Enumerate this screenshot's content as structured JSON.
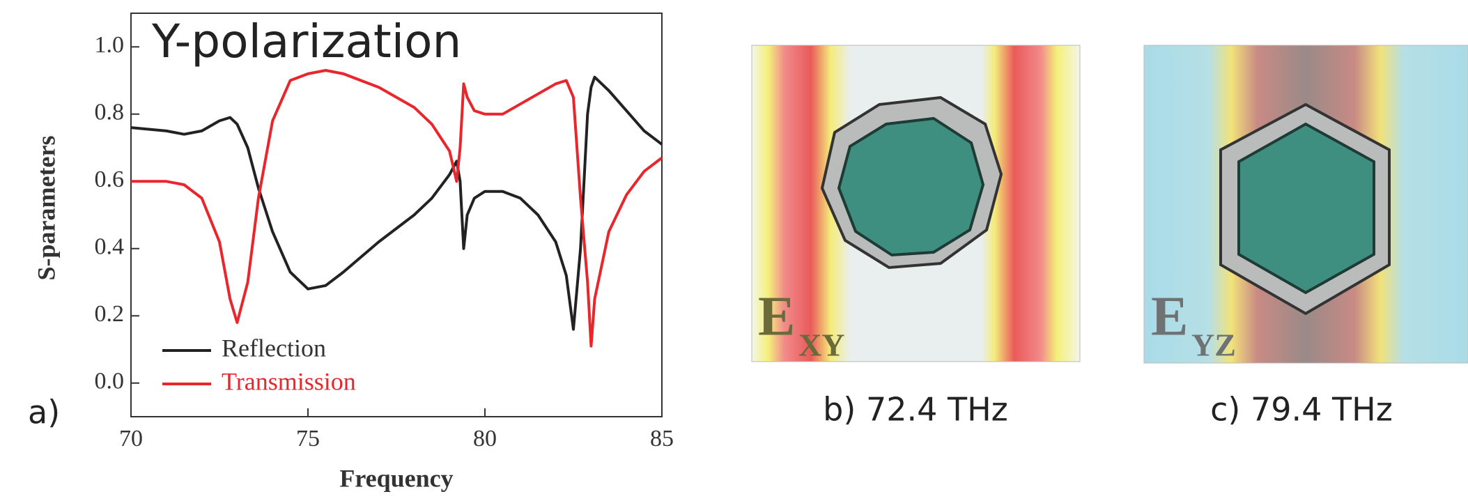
{
  "chart_data": {
    "type": "line",
    "title": "Y-polarization",
    "xlabel": "Frequency",
    "ylabel": "S-parameters",
    "x": [
      70,
      71,
      71.5,
      72,
      72.5,
      72.8,
      73,
      73.3,
      73.6,
      74,
      74.5,
      75,
      75.5,
      76,
      77,
      78,
      78.5,
      79,
      79.2,
      79.3,
      79.4,
      79.5,
      79.7,
      80,
      80.5,
      81,
      81.5,
      82,
      82.3,
      82.5,
      82.7,
      82.9,
      83,
      83.1,
      83.5,
      84,
      84.5,
      85
    ],
    "series": [
      {
        "name": "Reflection",
        "color": "#222222",
        "values": [
          0.76,
          0.75,
          0.74,
          0.75,
          0.78,
          0.79,
          0.77,
          0.7,
          0.58,
          0.45,
          0.33,
          0.28,
          0.29,
          0.33,
          0.42,
          0.5,
          0.55,
          0.62,
          0.66,
          0.6,
          0.4,
          0.5,
          0.55,
          0.57,
          0.57,
          0.55,
          0.5,
          0.42,
          0.32,
          0.16,
          0.4,
          0.8,
          0.88,
          0.91,
          0.87,
          0.81,
          0.75,
          0.71
        ]
      },
      {
        "name": "Transmission",
        "color": "#e8262b",
        "values": [
          0.6,
          0.6,
          0.59,
          0.55,
          0.42,
          0.25,
          0.18,
          0.3,
          0.55,
          0.78,
          0.9,
          0.92,
          0.93,
          0.92,
          0.88,
          0.82,
          0.77,
          0.69,
          0.6,
          0.7,
          0.89,
          0.85,
          0.81,
          0.8,
          0.8,
          0.83,
          0.86,
          0.89,
          0.9,
          0.85,
          0.55,
          0.3,
          0.11,
          0.25,
          0.45,
          0.56,
          0.63,
          0.67
        ]
      }
    ],
    "xlim": [
      70,
      85
    ],
    "xticks": [
      70,
      75,
      80,
      85
    ],
    "ylim": [
      -0.1,
      1.1
    ],
    "yticks": [
      {
        "value": 0,
        "label": "0.0"
      },
      0.2,
      0.4,
      0.6,
      0.8,
      {
        "value": 1,
        "label": "1.0"
      }
    ],
    "legend": "lower left"
  },
  "panels": [
    {
      "label": "a)"
    },
    {
      "label": "b) 72.4 THz",
      "field": "E",
      "subscript": "XY"
    },
    {
      "label": "c) 79.4 THz",
      "field": "E",
      "subscript": "YZ"
    }
  ]
}
